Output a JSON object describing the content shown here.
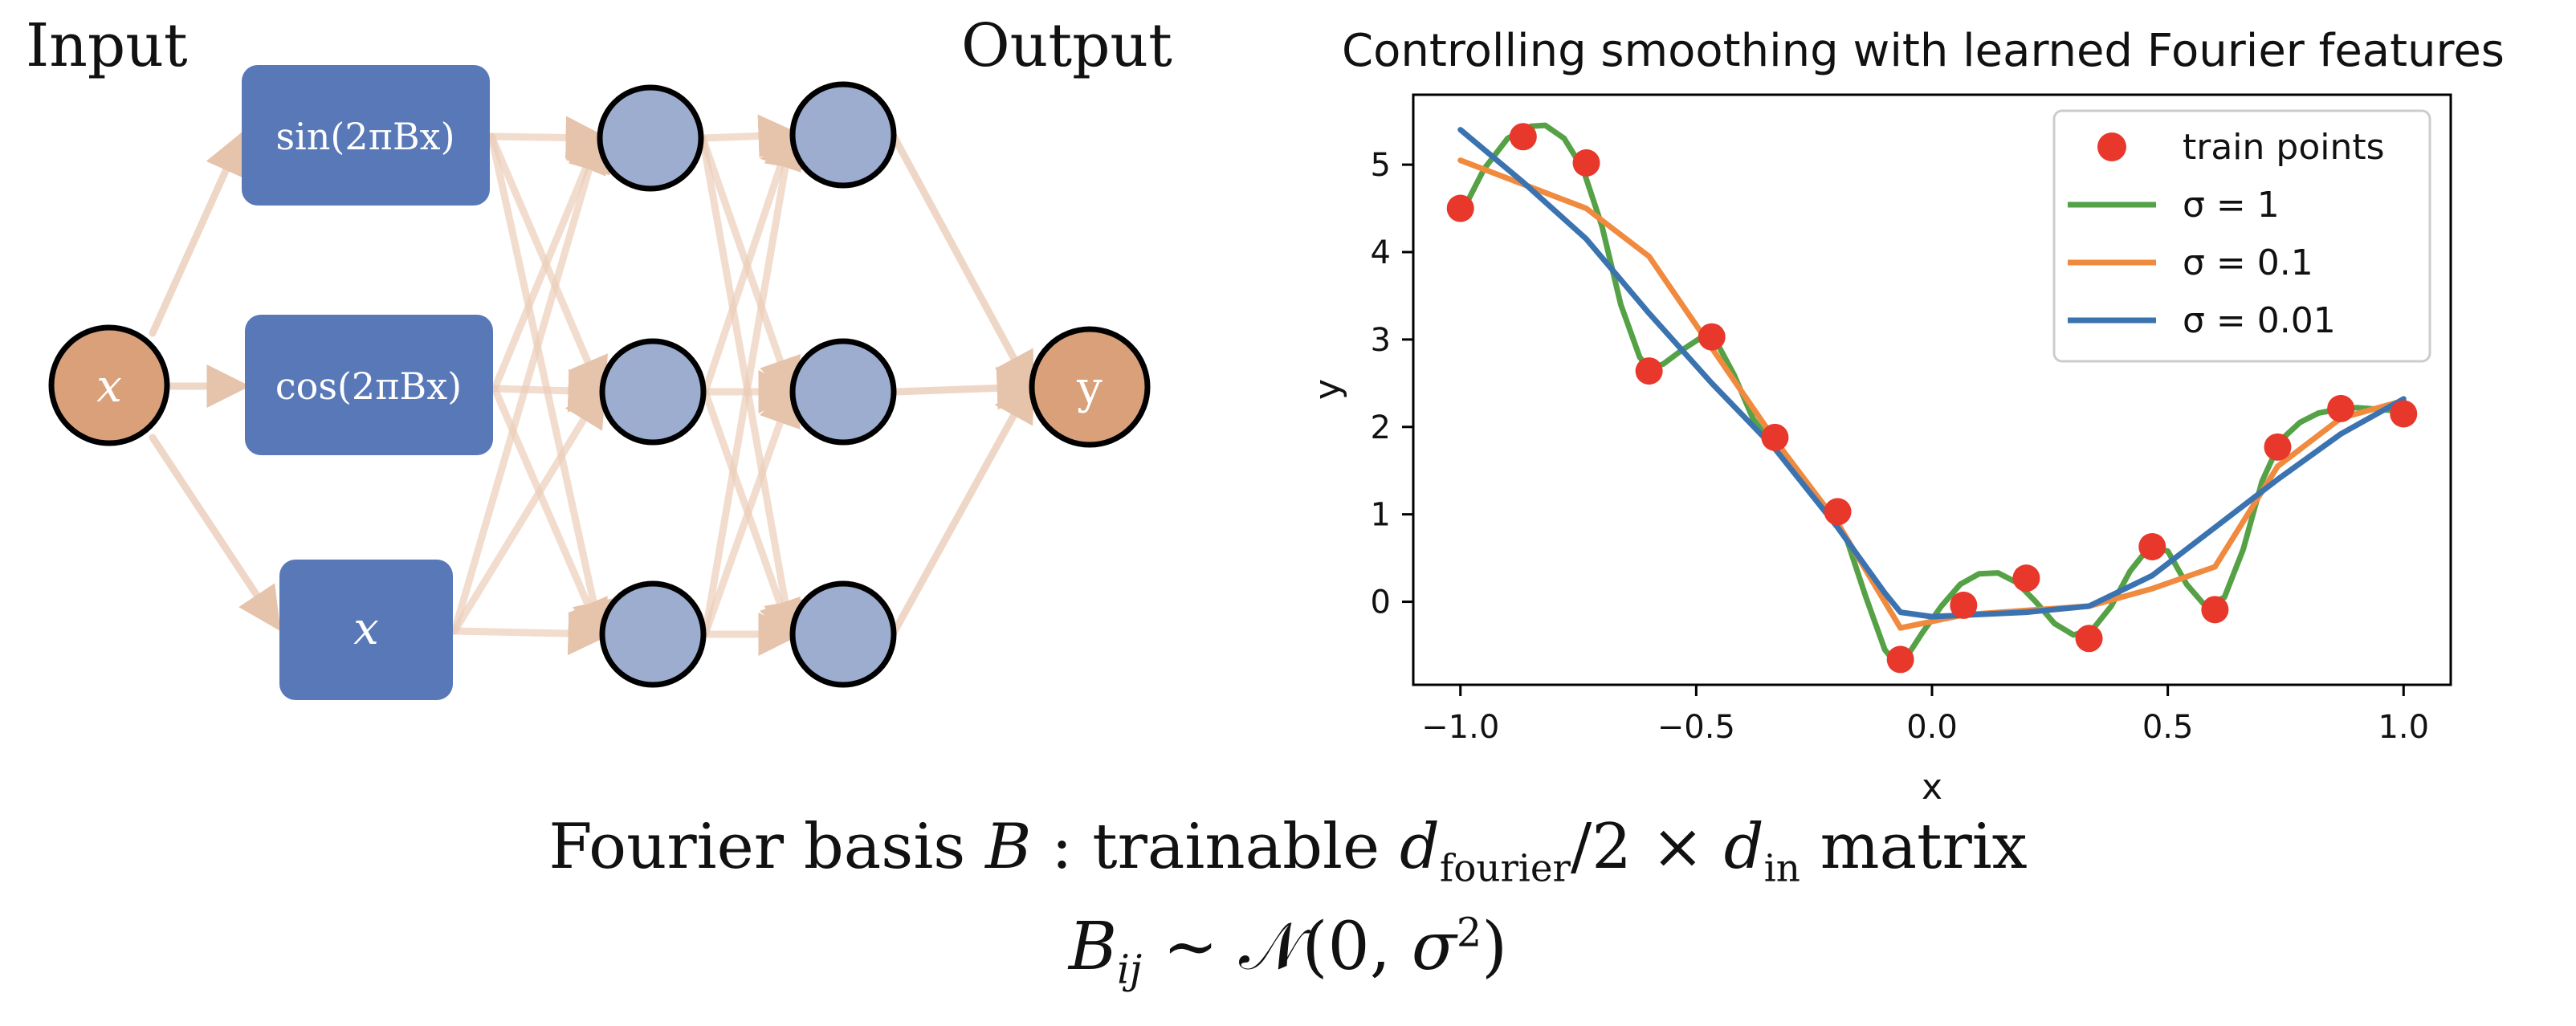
{
  "diagram": {
    "input_heading": "Input",
    "output_heading": "Output",
    "input_node_label": "x",
    "output_node_label": "y",
    "features": {
      "sin_label": "sin(2πBx)",
      "cos_label": "cos(2πBx)",
      "identity_label": "x"
    },
    "colors": {
      "io_node": "#d9a07a",
      "feature_box": "#5878b8",
      "hidden_node": "#9dadd0",
      "edge": "#ebcdb9",
      "node_outline": "#000000"
    }
  },
  "formula": {
    "line1": {
      "prefix": "Fourier basis ",
      "B": "B",
      "middle": " : trainable ",
      "d": "d",
      "fourier_sub": "fourier",
      "slash_two_times": "/2 × ",
      "d2": "d",
      "in_sub": "in",
      "suffix": " matrix"
    },
    "line2": {
      "B": "B",
      "ij_sub": "ij",
      "sim": " ∼ ",
      "N": "𝒩",
      "args_open": "(0, ",
      "sigma": "σ",
      "sq": "2",
      "args_close": ")"
    }
  },
  "chart_data": {
    "type": "line",
    "title": "Controlling smoothing with learned Fourier features",
    "xlabel": "x",
    "ylabel": "y",
    "xlim": [
      -1.1,
      1.1
    ],
    "ylim": [
      -0.95,
      5.8
    ],
    "xticks": [
      -1.0,
      -0.5,
      0.0,
      0.5,
      1.0
    ],
    "xtick_labels": [
      "−1.0",
      "−0.5",
      "0.0",
      "0.5",
      "1.0"
    ],
    "yticks": [
      0,
      1,
      2,
      3,
      4,
      5
    ],
    "ytick_labels": [
      "0",
      "1",
      "2",
      "3",
      "4",
      "5"
    ],
    "grid": false,
    "legend_position": "top-right",
    "train_points": {
      "name": "train points",
      "color": "#e8372b",
      "x": [
        -1.0,
        -0.867,
        -0.733,
        -0.6,
        -0.467,
        -0.333,
        -0.2,
        -0.067,
        0.067,
        0.2,
        0.333,
        0.467,
        0.6,
        0.733,
        0.867,
        1.0
      ],
      "y": [
        4.5,
        5.32,
        5.02,
        2.64,
        3.03,
        1.88,
        1.03,
        -0.66,
        -0.04,
        0.27,
        -0.42,
        0.63,
        -0.09,
        1.77,
        2.21,
        2.15
      ]
    },
    "series": [
      {
        "name": "σ = 1",
        "color": "#55a146",
        "x": [
          -1.0,
          -0.95,
          -0.9,
          -0.85,
          -0.82,
          -0.78,
          -0.74,
          -0.7,
          -0.66,
          -0.62,
          -0.6,
          -0.57,
          -0.53,
          -0.49,
          -0.46,
          -0.42,
          -0.38,
          -0.34,
          -0.3,
          -0.26,
          -0.22,
          -0.18,
          -0.14,
          -0.1,
          -0.08,
          -0.05,
          -0.02,
          0.02,
          0.06,
          0.1,
          0.14,
          0.18,
          0.22,
          0.26,
          0.3,
          0.34,
          0.38,
          0.42,
          0.46,
          0.5,
          0.54,
          0.58,
          0.62,
          0.66,
          0.7,
          0.74,
          0.78,
          0.82,
          0.86,
          0.9,
          0.95,
          1.0
        ],
        "y": [
          4.42,
          4.95,
          5.3,
          5.44,
          5.45,
          5.3,
          4.95,
          4.3,
          3.4,
          2.8,
          2.66,
          2.72,
          2.88,
          3.02,
          3.0,
          2.6,
          2.1,
          1.8,
          1.58,
          1.3,
          1.05,
          0.7,
          0.05,
          -0.55,
          -0.68,
          -0.6,
          -0.35,
          -0.05,
          0.2,
          0.32,
          0.33,
          0.22,
          0.0,
          -0.25,
          -0.38,
          -0.32,
          -0.05,
          0.35,
          0.62,
          0.58,
          0.2,
          -0.05,
          0.05,
          0.6,
          1.38,
          1.85,
          2.05,
          2.16,
          2.2,
          2.22,
          2.2,
          2.18
        ]
      },
      {
        "name": "σ = 0.1",
        "color": "#f08a3e",
        "x": [
          -1.0,
          -0.733,
          -0.6,
          -0.333,
          -0.2,
          -0.067,
          0.067,
          0.2,
          0.333,
          0.467,
          0.6,
          0.733,
          0.867,
          1.0
        ],
        "y": [
          5.05,
          4.5,
          3.95,
          1.85,
          0.9,
          -0.3,
          -0.15,
          -0.1,
          -0.05,
          0.15,
          0.4,
          1.55,
          2.1,
          2.3
        ]
      },
      {
        "name": "σ = 0.01",
        "color": "#3b73b1",
        "x": [
          -1.0,
          -0.867,
          -0.733,
          -0.6,
          -0.467,
          -0.333,
          -0.2,
          -0.1,
          -0.067,
          0.0,
          0.2,
          0.333,
          0.467,
          0.6,
          0.733,
          0.867,
          1.0
        ],
        "y": [
          5.4,
          4.8,
          4.15,
          3.3,
          2.5,
          1.75,
          0.85,
          0.1,
          -0.12,
          -0.17,
          -0.12,
          -0.05,
          0.3,
          0.85,
          1.4,
          1.92,
          2.32
        ]
      }
    ]
  }
}
